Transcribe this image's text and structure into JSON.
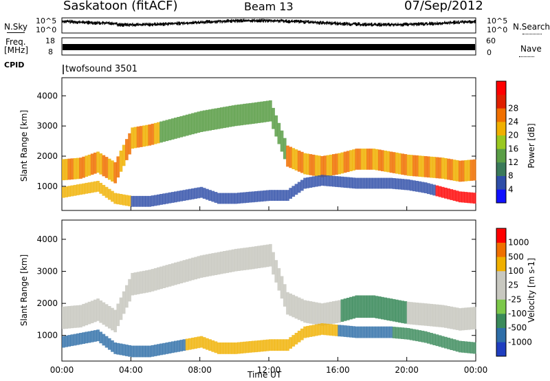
{
  "header": {
    "station": "Saskatoon (fitACF)",
    "beam": "Beam 13",
    "date": "07/Sep/2012"
  },
  "strips": {
    "nsky_label": "N.Sky",
    "nsearch_label": "N.Search",
    "freq_label_line1": "Freq.",
    "freq_label_line2": "[MHz]",
    "nave_label": "Nave",
    "cpid_label": "CPID",
    "cpid_value": "twofsound 3501",
    "left_top_tick": "10^5",
    "left_bottom_tick": "10^0",
    "right_top_tick": "10^5",
    "right_bottom_tick": "10^0",
    "freq_top_tick": "18",
    "freq_bottom_tick": "8",
    "nave_top_tick": "60",
    "nave_bottom_tick": "0"
  },
  "chart_data": [
    {
      "type": "heatmap",
      "panel": "power",
      "ylabel": "Slant Range [km]",
      "ylim": [
        200,
        4600
      ],
      "yticks": [
        "1000",
        "2000",
        "3000",
        "4000"
      ],
      "colorbar_label": "Power [dB]",
      "colorbar_ticks": [
        "4",
        "8",
        "12",
        "16",
        "20",
        "24",
        "28"
      ],
      "colorbar_colors": [
        "#1010ff",
        "#2e4ea8",
        "#3a7a5a",
        "#5a9e46",
        "#9ac820",
        "#f0b000",
        "#f07000",
        "#e02000",
        "#ff0000"
      ],
      "x_hours": [
        0,
        1,
        2,
        3,
        4,
        5,
        6,
        7,
        8,
        9,
        10,
        11,
        12,
        13,
        14,
        15,
        16,
        17,
        18,
        19,
        20,
        21,
        22,
        23,
        24
      ],
      "main_band_km": [
        1550,
        1600,
        1800,
        1450,
        2600,
        2700,
        2850,
        3000,
        3150,
        3250,
        3350,
        3420,
        3500,
        2000,
        1750,
        1650,
        1750,
        1900,
        1900,
        1800,
        1700,
        1650,
        1600,
        1500,
        1550
      ],
      "lower_band_km": [
        800,
        900,
        1000,
        600,
        500,
        500,
        600,
        700,
        800,
        600,
        600,
        650,
        700,
        700,
        1100,
        1200,
        1150,
        1100,
        1100,
        1100,
        1050,
        950,
        800,
        650,
        600
      ]
    },
    {
      "type": "heatmap",
      "panel": "velocity",
      "ylabel": "Slant Range [km]",
      "ylim": [
        200,
        4600
      ],
      "yticks": [
        "1000",
        "2000",
        "3000",
        "4000"
      ],
      "colorbar_label": "Velocity [m s-1]",
      "colorbar_ticks": [
        "1000",
        "500",
        "100",
        "25",
        "-25",
        "-100",
        "-500",
        "-1000"
      ],
      "colorbar_colors": [
        "#1f3ec0",
        "#2e6ea8",
        "#3a8a5a",
        "#7cc84a",
        "#c8c8c0",
        "#c8c8c0",
        "#f0b000",
        "#f07000",
        "#ff0000"
      ],
      "x_hours": [
        0,
        1,
        2,
        3,
        4,
        5,
        6,
        7,
        8,
        9,
        10,
        11,
        12,
        13,
        14,
        15,
        16,
        17,
        18,
        19,
        20,
        21,
        22,
        23,
        24
      ],
      "main_band_km": [
        1550,
        1600,
        1800,
        1450,
        2600,
        2700,
        2850,
        3000,
        3150,
        3250,
        3350,
        3420,
        3500,
        2000,
        1750,
        1650,
        1750,
        1900,
        1900,
        1800,
        1700,
        1650,
        1600,
        1500,
        1550
      ],
      "lower_band_km": [
        800,
        900,
        1000,
        600,
        500,
        500,
        600,
        700,
        800,
        600,
        600,
        650,
        700,
        700,
        1100,
        1200,
        1150,
        1100,
        1100,
        1100,
        1050,
        950,
        800,
        650,
        600
      ]
    }
  ],
  "xaxis": {
    "ticks": [
      "00:00",
      "04:00",
      "08:00",
      "12:00",
      "16:00",
      "20:00",
      "00:00"
    ],
    "label": "Time UT"
  }
}
